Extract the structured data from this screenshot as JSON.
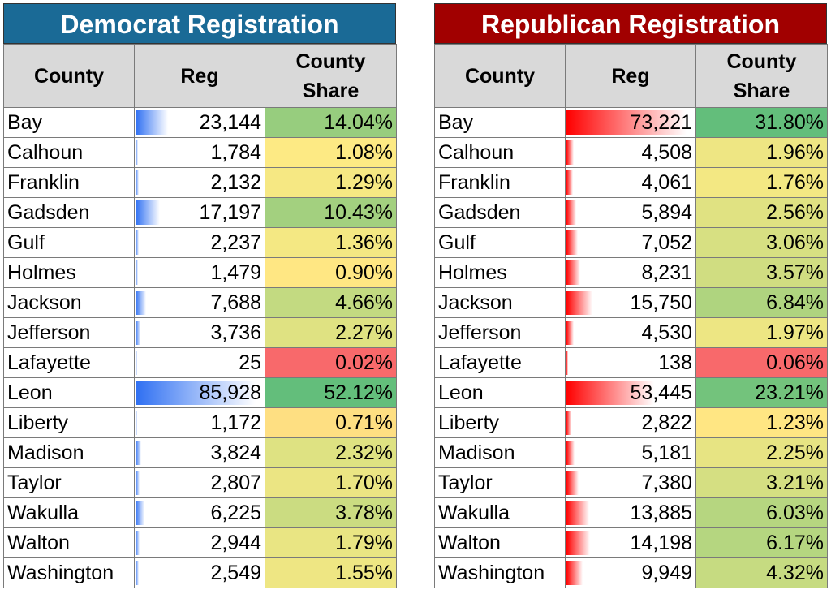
{
  "chart_data": [
    {
      "type": "table",
      "title": "Democrat Registration",
      "title_color": "#1a6a96",
      "bar_color": "#2e6ff2",
      "columns": [
        "County",
        "Reg",
        "County Share"
      ],
      "counties": [
        "Bay",
        "Calhoun",
        "Franklin",
        "Gadsden",
        "Gulf",
        "Holmes",
        "Jackson",
        "Jefferson",
        "Lafayette",
        "Leon",
        "Liberty",
        "Madison",
        "Taylor",
        "Wakulla",
        "Walton",
        "Washington"
      ],
      "reg": [
        "23,144",
        "1,784",
        "2,132",
        "17,197",
        "2,237",
        "1,479",
        "7,688",
        "3,736",
        "25",
        "85,928",
        "1,172",
        "3,824",
        "2,807",
        "6,225",
        "2,944",
        "2,549"
      ],
      "reg_values": [
        23144,
        1784,
        2132,
        17197,
        2237,
        1479,
        7688,
        3736,
        25,
        85928,
        1172,
        3824,
        2807,
        6225,
        2944,
        2549
      ],
      "share": [
        "14.04%",
        "1.08%",
        "1.29%",
        "10.43%",
        "1.36%",
        "0.90%",
        "4.66%",
        "2.27%",
        "0.02%",
        "52.12%",
        "0.71%",
        "2.32%",
        "1.70%",
        "3.78%",
        "1.79%",
        "1.55%"
      ],
      "share_values": [
        14.04,
        1.08,
        1.29,
        10.43,
        1.36,
        0.9,
        4.66,
        2.27,
        0.02,
        52.12,
        0.71,
        2.32,
        1.7,
        3.78,
        1.79,
        1.55
      ]
    },
    {
      "type": "table",
      "title": "Republican Registration",
      "title_color": "#a10000",
      "bar_color": "#ff0000",
      "columns": [
        "County",
        "Reg",
        "County Share"
      ],
      "counties": [
        "Bay",
        "Calhoun",
        "Franklin",
        "Gadsden",
        "Gulf",
        "Holmes",
        "Jackson",
        "Jefferson",
        "Lafayette",
        "Leon",
        "Liberty",
        "Madison",
        "Taylor",
        "Wakulla",
        "Walton",
        "Washington"
      ],
      "reg": [
        "73,221",
        "4,508",
        "4,061",
        "5,894",
        "7,052",
        "8,231",
        "15,750",
        "4,530",
        "138",
        "53,445",
        "2,822",
        "5,181",
        "7,380",
        "13,885",
        "14,198",
        "9,949"
      ],
      "reg_values": [
        73221,
        4508,
        4061,
        5894,
        7052,
        8231,
        15750,
        4530,
        138,
        53445,
        2822,
        5181,
        7380,
        13885,
        14198,
        9949
      ],
      "share": [
        "31.80%",
        "1.96%",
        "1.76%",
        "2.56%",
        "3.06%",
        "3.57%",
        "6.84%",
        "1.97%",
        "0.06%",
        "23.21%",
        "1.23%",
        "2.25%",
        "3.21%",
        "6.03%",
        "6.17%",
        "4.32%"
      ],
      "share_values": [
        31.8,
        1.96,
        1.76,
        2.56,
        3.06,
        3.57,
        6.84,
        1.97,
        0.06,
        23.21,
        1.23,
        2.25,
        3.21,
        6.03,
        6.17,
        4.32
      ]
    }
  ]
}
